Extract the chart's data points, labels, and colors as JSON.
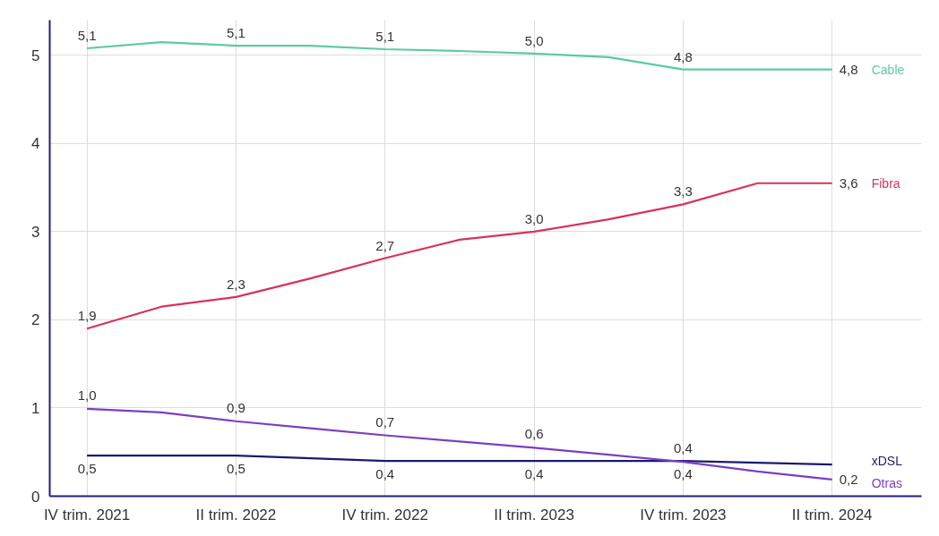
{
  "chart_data": {
    "type": "line",
    "categories": [
      "IV trim. 2021",
      null,
      "II trim. 2022",
      null,
      "IV trim. 2022",
      null,
      "II trim. 2023",
      null,
      "IV trim. 2023",
      null,
      "II trim. 2024"
    ],
    "series": [
      {
        "name": "Cable",
        "color": "#5ec9a8",
        "values": [
          5.08,
          5.15,
          5.11,
          5.11,
          5.07,
          5.05,
          5.02,
          4.98,
          4.84,
          4.84,
          4.84
        ],
        "value_labels": [
          "5,1",
          null,
          "5,1",
          null,
          "5,1",
          null,
          "5,0",
          null,
          "4,8",
          null,
          "4,8"
        ]
      },
      {
        "name": "Fibra",
        "color": "#d9325a",
        "values": [
          1.9,
          2.15,
          2.26,
          2.47,
          2.7,
          2.91,
          3.0,
          3.14,
          3.31,
          3.55,
          3.55
        ],
        "value_labels": [
          "1,9",
          null,
          "2,3",
          null,
          "2,7",
          null,
          "3,0",
          null,
          "3,3",
          null,
          "3,6"
        ]
      },
      {
        "name": "xDSL",
        "color": "#1a1a6e",
        "values": [
          0.46,
          0.46,
          0.46,
          0.43,
          0.4,
          0.4,
          0.4,
          0.4,
          0.4,
          0.38,
          0.36
        ],
        "value_labels": [
          "0,5",
          null,
          "0,5",
          null,
          "0,4",
          null,
          "0,4",
          null,
          "0,4",
          null,
          null
        ]
      },
      {
        "name": "Otras",
        "color": "#7b3fbf",
        "values": [
          0.99,
          0.95,
          0.85,
          0.77,
          0.69,
          0.62,
          0.55,
          0.47,
          0.39,
          0.28,
          0.19
        ],
        "value_labels": [
          "1,0",
          null,
          "0,9",
          null,
          "0,7",
          null,
          "0,6",
          null,
          "0,4",
          null,
          "0,2"
        ]
      }
    ],
    "ylim": [
      0,
      5.4
    ],
    "yticks": [
      0,
      1,
      2,
      3,
      4,
      5
    ],
    "grid": true,
    "legend": "right",
    "line_style": "solid"
  }
}
